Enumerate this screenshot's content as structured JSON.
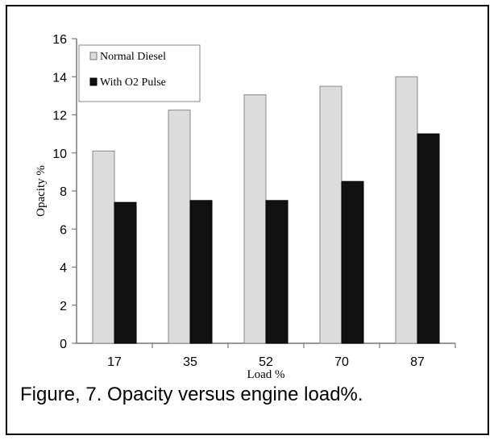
{
  "chart_data": {
    "type": "bar",
    "categories": [
      "17",
      "35",
      "52",
      "70",
      "87"
    ],
    "series": [
      {
        "name": "Normal Diesel",
        "values": [
          10.1,
          12.25,
          13.05,
          13.5,
          14.0
        ],
        "color": "#dcdcdc"
      },
      {
        "name": "With O2 Pulse",
        "values": [
          7.4,
          7.5,
          7.5,
          8.5,
          11.0
        ],
        "color": "#111111"
      }
    ],
    "title": "",
    "xlabel": "Load %",
    "ylabel": "Opacity %",
    "ylim": [
      0,
      16
    ],
    "yticks": [
      "0",
      "2",
      "4",
      "6",
      "8",
      "10",
      "12",
      "14",
      "16"
    ],
    "grid": false,
    "legend_position": "top-left"
  },
  "caption": "Figure, 7. Opacity versus engine load%."
}
